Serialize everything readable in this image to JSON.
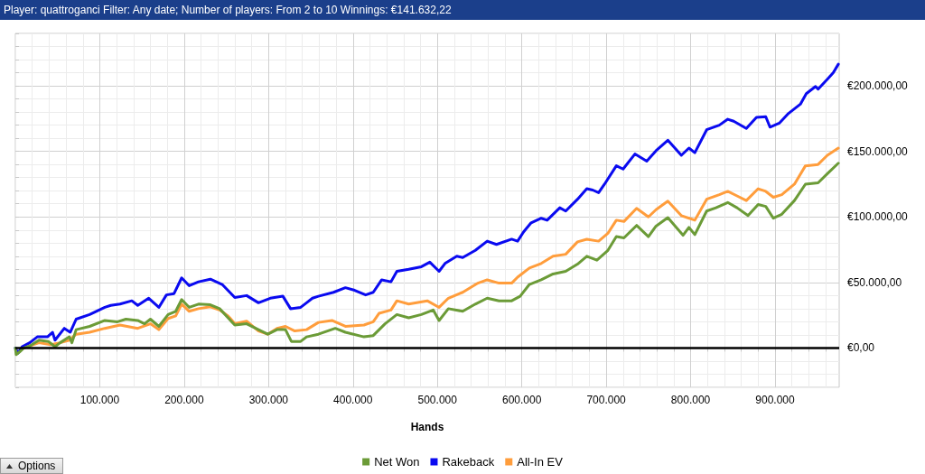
{
  "chart_data": {
    "type": "line",
    "title": "Player: quattroganci Filter: Any date; Number of players: From 2 to 10 Winnings: €141.632,22",
    "xlabel": "Hands",
    "annotations": [
      "Options"
    ],
    "xlim": [
      0,
      976000
    ],
    "xticks": [
      {
        "value": 0,
        "label": null
      },
      {
        "value": 20000,
        "label": null
      },
      {
        "value": 40000,
        "label": null
      },
      {
        "value": 60000,
        "label": null
      },
      {
        "value": 80000,
        "label": null
      },
      {
        "value": 100000,
        "label": "100.000"
      },
      {
        "value": 120000,
        "label": null
      },
      {
        "value": 140000,
        "label": null
      },
      {
        "value": 160000,
        "label": null
      },
      {
        "value": 180000,
        "label": null
      },
      {
        "value": 200000,
        "label": "200.000"
      },
      {
        "value": 220000,
        "label": null
      },
      {
        "value": 240000,
        "label": null
      },
      {
        "value": 260000,
        "label": null
      },
      {
        "value": 280000,
        "label": null
      },
      {
        "value": 300000,
        "label": "300.000"
      },
      {
        "value": 320000,
        "label": null
      },
      {
        "value": 340000,
        "label": null
      },
      {
        "value": 360000,
        "label": null
      },
      {
        "value": 380000,
        "label": null
      },
      {
        "value": 400000,
        "label": "400.000"
      },
      {
        "value": 420000,
        "label": null
      },
      {
        "value": 440000,
        "label": null
      },
      {
        "value": 460000,
        "label": null
      },
      {
        "value": 480000,
        "label": null
      },
      {
        "value": 500000,
        "label": "500.000"
      },
      {
        "value": 520000,
        "label": null
      },
      {
        "value": 540000,
        "label": null
      },
      {
        "value": 560000,
        "label": null
      },
      {
        "value": 580000,
        "label": null
      },
      {
        "value": 600000,
        "label": "600.000"
      },
      {
        "value": 620000,
        "label": null
      },
      {
        "value": 640000,
        "label": null
      },
      {
        "value": 660000,
        "label": null
      },
      {
        "value": 680000,
        "label": null
      },
      {
        "value": 700000,
        "label": "700.000"
      },
      {
        "value": 720000,
        "label": null
      },
      {
        "value": 740000,
        "label": null
      },
      {
        "value": 760000,
        "label": null
      },
      {
        "value": 780000,
        "label": null
      },
      {
        "value": 800000,
        "label": "800.000"
      },
      {
        "value": 820000,
        "label": null
      },
      {
        "value": 840000,
        "label": null
      },
      {
        "value": 860000,
        "label": null
      },
      {
        "value": 880000,
        "label": null
      },
      {
        "value": 900000,
        "label": "900.000"
      },
      {
        "value": 920000,
        "label": null
      },
      {
        "value": 940000,
        "label": null
      },
      {
        "value": 960000,
        "label": null
      }
    ],
    "ylim": [
      -30000,
      240000
    ],
    "yticks": [
      {
        "value": -30000,
        "label": null
      },
      {
        "value": -20000,
        "label": null
      },
      {
        "value": -10000,
        "label": null
      },
      {
        "value": 0,
        "label": "€0,00"
      },
      {
        "value": 10000,
        "label": null
      },
      {
        "value": 20000,
        "label": null
      },
      {
        "value": 30000,
        "label": null
      },
      {
        "value": 40000,
        "label": null
      },
      {
        "value": 50000,
        "label": "€50.000,00"
      },
      {
        "value": 60000,
        "label": null
      },
      {
        "value": 70000,
        "label": null
      },
      {
        "value": 80000,
        "label": null
      },
      {
        "value": 90000,
        "label": null
      },
      {
        "value": 100000,
        "label": "€100.000,00"
      },
      {
        "value": 110000,
        "label": null
      },
      {
        "value": 120000,
        "label": null
      },
      {
        "value": 130000,
        "label": null
      },
      {
        "value": 140000,
        "label": null
      },
      {
        "value": 150000,
        "label": "€150.000,00"
      },
      {
        "value": 160000,
        "label": null
      },
      {
        "value": 170000,
        "label": null
      },
      {
        "value": 180000,
        "label": null
      },
      {
        "value": 190000,
        "label": null
      },
      {
        "value": 200000,
        "label": "€200.000,00"
      },
      {
        "value": 210000,
        "label": null
      },
      {
        "value": 220000,
        "label": null
      },
      {
        "value": 230000,
        "label": null
      },
      {
        "value": 240000,
        "label": null
      }
    ],
    "grid": true,
    "legend": "bottom",
    "marker": "none",
    "line_style": "solid",
    "ref_lines": [
      {
        "axis": "y",
        "value": 0,
        "color": "#000000"
      }
    ],
    "series": [
      {
        "name": "Net Won",
        "color": "#6b9b37",
        "x": [
          0,
          1000,
          5000,
          10000,
          17000,
          28000,
          39000,
          47000,
          53000,
          64000,
          67000,
          72000,
          88000,
          106000,
          121000,
          131000,
          145000,
          153000,
          160000,
          170000,
          181000,
          190000,
          197000,
          206000,
          217000,
          231000,
          242000,
          252000,
          260000,
          274000,
          288000,
          299000,
          310000,
          320000,
          327000,
          338000,
          345000,
          359000,
          379000,
          391000,
          413000,
          424000,
          438000,
          452000,
          466000,
          481000,
          495000,
          502000,
          513000,
          530000,
          545000,
          559000,
          573000,
          588000,
          598000,
          609000,
          623000,
          637000,
          652000,
          666000,
          677000,
          689000,
          702000,
          712000,
          721000,
          736000,
          750000,
          759000,
          773000,
          791000,
          798000,
          805000,
          819000,
          830000,
          844000,
          855000,
          868000,
          880000,
          889000,
          898000,
          908000,
          923000,
          936000,
          951000,
          962000,
          975000
        ],
        "values": [
          0,
          -5000,
          -3000,
          0,
          1500,
          6000,
          5000,
          1000,
          4000,
          8500,
          4000,
          14000,
          16500,
          21000,
          20000,
          22000,
          21000,
          18500,
          22000,
          16500,
          25500,
          28000,
          37000,
          31000,
          33500,
          33000,
          30000,
          23000,
          17500,
          18500,
          14000,
          10500,
          14000,
          14000,
          5000,
          5000,
          8500,
          10500,
          15000,
          12000,
          8500,
          9500,
          18500,
          25500,
          23000,
          25500,
          29000,
          21000,
          30000,
          28000,
          33500,
          38000,
          36000,
          36000,
          39500,
          48500,
          52000,
          56500,
          58500,
          64000,
          70000,
          67000,
          74500,
          85000,
          84000,
          93500,
          85000,
          93000,
          99500,
          86000,
          92000,
          86500,
          104500,
          107000,
          111000,
          107000,
          101000,
          109500,
          108000,
          99000,
          102000,
          112500,
          125000,
          126000,
          133000,
          141000
        ]
      },
      {
        "name": "Rakeback",
        "color": "#0a0af0",
        "x": [
          0,
          3000,
          8000,
          17000,
          26000,
          38000,
          44000,
          47000,
          58000,
          65000,
          72000,
          88000,
          106000,
          113000,
          124000,
          138000,
          145000,
          158000,
          170000,
          179000,
          188000,
          197000,
          206000,
          217000,
          231000,
          245000,
          260000,
          274000,
          288000,
          302000,
          317000,
          326000,
          338000,
          345000,
          352000,
          359000,
          377000,
          391000,
          402000,
          415000,
          424000,
          434000,
          445000,
          452000,
          466000,
          481000,
          491000,
          502000,
          509000,
          523000,
          530000,
          545000,
          559000,
          570000,
          588000,
          595000,
          602000,
          611000,
          623000,
          630000,
          645000,
          652000,
          666000,
          677000,
          684000,
          691000,
          698000,
          712000,
          720000,
          734000,
          748000,
          759000,
          773000,
          789000,
          798000,
          805000,
          819000,
          834000,
          844000,
          851000,
          866000,
          878000,
          889000,
          894000,
          905000,
          916000,
          930000,
          937000,
          948000,
          951000,
          962000,
          969000,
          975000
        ],
        "values": [
          0,
          -4000,
          1000,
          4000,
          8500,
          8500,
          12000,
          6000,
          15000,
          12000,
          22000,
          25500,
          31000,
          32500,
          33500,
          36000,
          32500,
          38000,
          31000,
          40500,
          41500,
          53500,
          47500,
          50500,
          52500,
          48500,
          38500,
          40000,
          34500,
          38000,
          39500,
          30000,
          31000,
          34500,
          38000,
          39500,
          42500,
          46000,
          44000,
          40500,
          42500,
          52000,
          50500,
          58500,
          60000,
          62000,
          65500,
          58500,
          64500,
          70000,
          69000,
          74500,
          81500,
          79000,
          83000,
          81500,
          88500,
          95500,
          99000,
          97500,
          107000,
          104500,
          113500,
          121500,
          120500,
          118500,
          125000,
          139000,
          136500,
          148000,
          142500,
          150500,
          158500,
          147000,
          152500,
          149000,
          166500,
          170000,
          174500,
          173000,
          167500,
          176000,
          176500,
          168500,
          171500,
          179000,
          186000,
          194000,
          199500,
          197500,
          205000,
          210000,
          216500
        ]
      },
      {
        "name": "All-In EV",
        "color": "#ff9d3c",
        "x": [
          10000,
          28000,
          42000,
          53000,
          64000,
          72000,
          88000,
          106000,
          124000,
          145000,
          160000,
          170000,
          181000,
          190000,
          197000,
          206000,
          217000,
          231000,
          242000,
          252000,
          260000,
          274000,
          288000,
          299000,
          310000,
          320000,
          331000,
          345000,
          359000,
          375000,
          391000,
          413000,
          424000,
          431000,
          445000,
          452000,
          466000,
          488000,
          502000,
          513000,
          530000,
          548000,
          559000,
          573000,
          588000,
          595000,
          609000,
          623000,
          637000,
          652000,
          666000,
          677000,
          691000,
          702000,
          712000,
          721000,
          736000,
          750000,
          759000,
          773000,
          789000,
          805000,
          819000,
          834000,
          844000,
          855000,
          866000,
          880000,
          889000,
          898000,
          908000,
          923000,
          936000,
          951000,
          962000,
          975000
        ],
        "values": [
          0,
          4000,
          2500,
          4000,
          6000,
          10500,
          12000,
          15000,
          17500,
          15000,
          18500,
          14000,
          22500,
          24500,
          33500,
          28000,
          30000,
          31500,
          29000,
          24500,
          18500,
          20500,
          13000,
          10500,
          15000,
          16500,
          13000,
          14000,
          19500,
          21000,
          16500,
          17500,
          20000,
          26500,
          29000,
          36000,
          33500,
          36000,
          31000,
          38000,
          42500,
          49500,
          52000,
          49500,
          49500,
          54000,
          61000,
          64500,
          70000,
          71500,
          81000,
          83000,
          81500,
          87500,
          97500,
          96500,
          106500,
          100000,
          105500,
          112000,
          101000,
          97500,
          113500,
          117000,
          119500,
          116000,
          112500,
          121500,
          119500,
          115000,
          117000,
          125000,
          139000,
          140000,
          147000,
          152500
        ]
      }
    ]
  }
}
